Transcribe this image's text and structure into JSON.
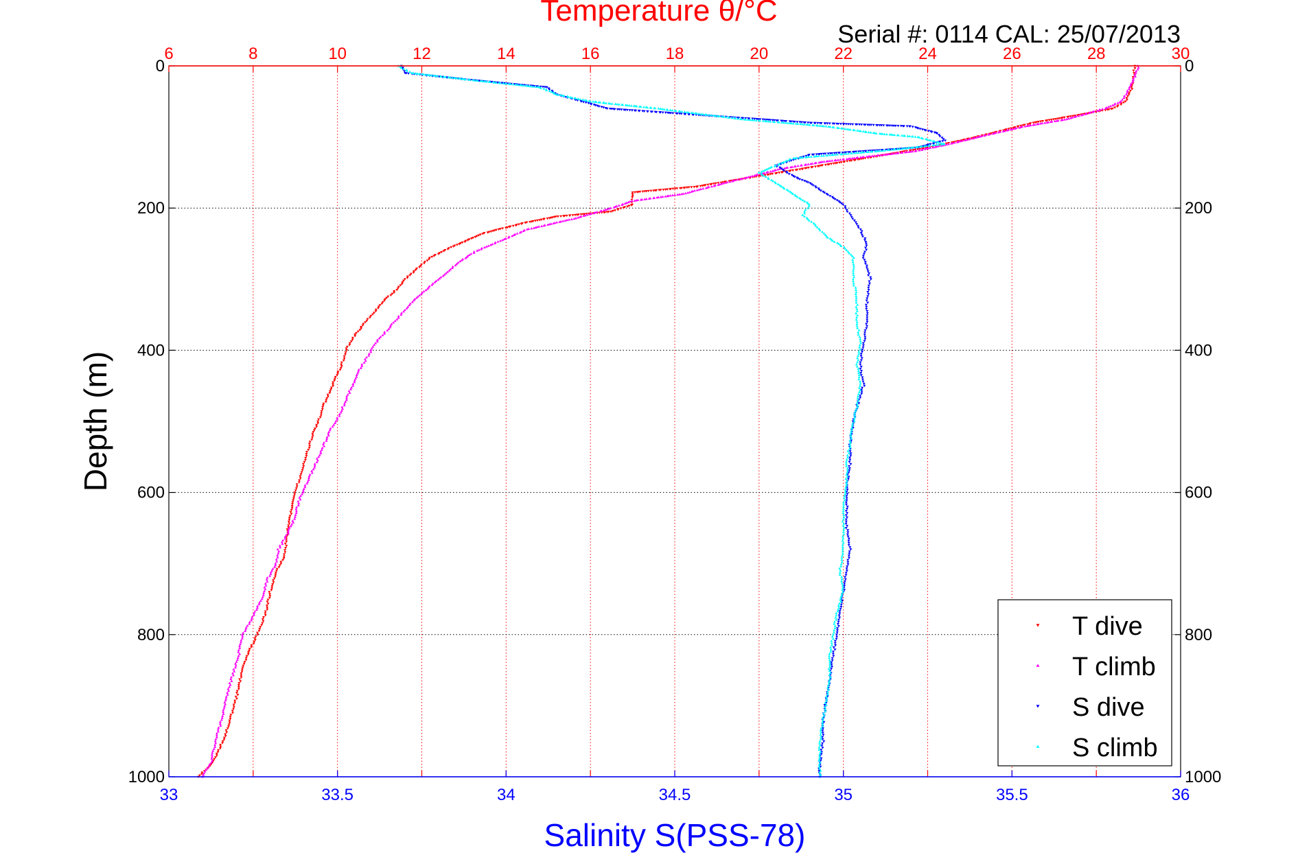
{
  "chart_data": {
    "type": "scatter",
    "title": "Temperature θ/°C",
    "subtitle": "Serial #: 0114  CAL: 25/07/2013",
    "xlabel_bottom": "Salinity S(PSS-78)",
    "xlabel_top": "",
    "ylabel": "Depth (m)",
    "xlim_salinity": [
      33,
      36
    ],
    "xlim_temperature": [
      6,
      30
    ],
    "ylim_depth": [
      0,
      1000
    ],
    "y_reversed": true,
    "grid": true,
    "legend_position": "bottom-right",
    "ticks": {
      "salinity": [
        "33",
        "33.5",
        "34",
        "34.5",
        "35",
        "35.5",
        "36"
      ],
      "temperature": [
        "6",
        "8",
        "10",
        "12",
        "14",
        "16",
        "18",
        "20",
        "22",
        "24",
        "26",
        "28",
        "30"
      ],
      "depth": [
        "0",
        "200",
        "400",
        "600",
        "800",
        "1000"
      ]
    },
    "colors": {
      "temperature_axis": "#ff0000",
      "salinity_axis": "#0000ff",
      "grid_temperature": "#ff0000",
      "grid_depth": "#000000"
    },
    "series": [
      {
        "name": "T dive",
        "axis": "temperature",
        "color": "#ff0000",
        "marker": "triangle-down",
        "points": [
          [
            28.9,
            0
          ],
          [
            28.9,
            10
          ],
          [
            28.85,
            30
          ],
          [
            28.7,
            50
          ],
          [
            28.4,
            60
          ],
          [
            27.5,
            70
          ],
          [
            26.5,
            80
          ],
          [
            25.5,
            95
          ],
          [
            24.8,
            105
          ],
          [
            24,
            115
          ],
          [
            23,
            125
          ],
          [
            22,
            135
          ],
          [
            21,
            145
          ],
          [
            20,
            155
          ],
          [
            18.5,
            170
          ],
          [
            17,
            178
          ],
          [
            17,
            185
          ],
          [
            17,
            195
          ],
          [
            16.5,
            205
          ],
          [
            15.2,
            212
          ],
          [
            14.5,
            220
          ],
          [
            13.5,
            235
          ],
          [
            12.7,
            255
          ],
          [
            12.2,
            270
          ],
          [
            11.9,
            285
          ],
          [
            11.6,
            300
          ],
          [
            11.4,
            315
          ],
          [
            11.1,
            330
          ],
          [
            10.9,
            345
          ],
          [
            10.6,
            365
          ],
          [
            10.4,
            380
          ],
          [
            10.2,
            400
          ],
          [
            10.1,
            420
          ],
          [
            9.95,
            440
          ],
          [
            9.8,
            460
          ],
          [
            9.65,
            480
          ],
          [
            9.55,
            500
          ],
          [
            9.4,
            520
          ],
          [
            9.3,
            540
          ],
          [
            9.2,
            560
          ],
          [
            9.1,
            580
          ],
          [
            9,
            600
          ],
          [
            8.9,
            630
          ],
          [
            8.8,
            660
          ],
          [
            8.75,
            690
          ],
          [
            8.55,
            710
          ],
          [
            8.4,
            740
          ],
          [
            8.3,
            770
          ],
          [
            8.1,
            800
          ],
          [
            7.85,
            830
          ],
          [
            7.7,
            860
          ],
          [
            7.6,
            890
          ],
          [
            7.5,
            910
          ],
          [
            7.35,
            940
          ],
          [
            7.2,
            960
          ],
          [
            7.05,
            980
          ],
          [
            6.7,
            1000
          ]
        ]
      },
      {
        "name": "T climb",
        "axis": "temperature",
        "color": "#ff00ff",
        "marker": "triangle-up",
        "points": [
          [
            29,
            0
          ],
          [
            28.95,
            10
          ],
          [
            28.8,
            30
          ],
          [
            28.6,
            50
          ],
          [
            28.2,
            60
          ],
          [
            27.3,
            75
          ],
          [
            26.3,
            85
          ],
          [
            25.2,
            100
          ],
          [
            24.5,
            110
          ],
          [
            23.7,
            120
          ],
          [
            22.5,
            128
          ],
          [
            21.5,
            135
          ],
          [
            20.5,
            145
          ],
          [
            19.5,
            160
          ],
          [
            18.2,
            180
          ],
          [
            17,
            190
          ],
          [
            16.5,
            200
          ],
          [
            15.6,
            215
          ],
          [
            14.5,
            230
          ],
          [
            13.9,
            245
          ],
          [
            13.3,
            260
          ],
          [
            12.9,
            275
          ],
          [
            12.6,
            290
          ],
          [
            12.2,
            310
          ],
          [
            11.8,
            330
          ],
          [
            11.5,
            350
          ],
          [
            11.2,
            370
          ],
          [
            10.9,
            390
          ],
          [
            10.7,
            410
          ],
          [
            10.5,
            430
          ],
          [
            10.35,
            450
          ],
          [
            10.2,
            470
          ],
          [
            10.05,
            490
          ],
          [
            9.85,
            510
          ],
          [
            9.7,
            530
          ],
          [
            9.55,
            550
          ],
          [
            9.4,
            570
          ],
          [
            9.25,
            590
          ],
          [
            9.1,
            610
          ],
          [
            8.95,
            640
          ],
          [
            8.8,
            660
          ],
          [
            8.6,
            680
          ],
          [
            8.55,
            700
          ],
          [
            8.35,
            720
          ],
          [
            8.2,
            750
          ],
          [
            7.95,
            780
          ],
          [
            7.75,
            800
          ],
          [
            7.65,
            830
          ],
          [
            7.5,
            860
          ],
          [
            7.35,
            890
          ],
          [
            7.25,
            920
          ],
          [
            7.1,
            950
          ],
          [
            7,
            980
          ],
          [
            6.8,
            1000
          ]
        ]
      },
      {
        "name": "S dive",
        "axis": "salinity",
        "color": "#0000ff",
        "marker": "triangle-down",
        "points": [
          [
            33.69,
            0
          ],
          [
            33.7,
            10
          ],
          [
            33.9,
            20
          ],
          [
            34.12,
            30
          ],
          [
            34.15,
            40
          ],
          [
            34.3,
            60
          ],
          [
            34.6,
            70
          ],
          [
            34.9,
            80
          ],
          [
            35.2,
            85
          ],
          [
            35.28,
            95
          ],
          [
            35.3,
            105
          ],
          [
            35.22,
            115
          ],
          [
            34.9,
            125
          ],
          [
            34.8,
            140
          ],
          [
            34.85,
            155
          ],
          [
            34.9,
            165
          ],
          [
            34.95,
            180
          ],
          [
            35,
            195
          ],
          [
            35.02,
            210
          ],
          [
            35.05,
            230
          ],
          [
            35.07,
            250
          ],
          [
            35.06,
            270
          ],
          [
            35.08,
            300
          ],
          [
            35.07,
            330
          ],
          [
            35.07,
            360
          ],
          [
            35.06,
            390
          ],
          [
            35.05,
            420
          ],
          [
            35.06,
            450
          ],
          [
            35.04,
            480
          ],
          [
            35.03,
            500
          ],
          [
            35.02,
            530
          ],
          [
            35.02,
            560
          ],
          [
            35.01,
            590
          ],
          [
            35.01,
            620
          ],
          [
            35.01,
            650
          ],
          [
            35.02,
            680
          ],
          [
            35.01,
            710
          ],
          [
            35,
            740
          ],
          [
            34.99,
            770
          ],
          [
            34.98,
            800
          ],
          [
            34.97,
            830
          ],
          [
            34.96,
            860
          ],
          [
            34.95,
            890
          ],
          [
            34.94,
            920
          ],
          [
            34.94,
            950
          ],
          [
            34.93,
            980
          ],
          [
            34.93,
            1000
          ]
        ]
      },
      {
        "name": "S climb",
        "axis": "salinity",
        "color": "#00ffff",
        "marker": "triangle-up",
        "points": [
          [
            33.68,
            0
          ],
          [
            33.72,
            10
          ],
          [
            33.9,
            20
          ],
          [
            34.1,
            30
          ],
          [
            34.15,
            40
          ],
          [
            34.25,
            50
          ],
          [
            34.45,
            60
          ],
          [
            34.7,
            75
          ],
          [
            34.95,
            85
          ],
          [
            35.1,
            95
          ],
          [
            35.22,
            100
          ],
          [
            35.3,
            110
          ],
          [
            35.1,
            120
          ],
          [
            34.85,
            130
          ],
          [
            34.75,
            150
          ],
          [
            34.8,
            165
          ],
          [
            34.85,
            180
          ],
          [
            34.9,
            195
          ],
          [
            34.88,
            210
          ],
          [
            34.92,
            225
          ],
          [
            34.95,
            240
          ],
          [
            35,
            255
          ],
          [
            35.03,
            270
          ],
          [
            35.03,
            300
          ],
          [
            35.04,
            330
          ],
          [
            35.04,
            360
          ],
          [
            35.05,
            390
          ],
          [
            35.04,
            420
          ],
          [
            35.05,
            450
          ],
          [
            35.04,
            480
          ],
          [
            35.03,
            500
          ],
          [
            35.02,
            530
          ],
          [
            35.01,
            560
          ],
          [
            35.01,
            590
          ],
          [
            35,
            620
          ],
          [
            35,
            650
          ],
          [
            35,
            680
          ],
          [
            34.99,
            710
          ],
          [
            35,
            740
          ],
          [
            34.98,
            770
          ],
          [
            34.97,
            800
          ],
          [
            34.96,
            830
          ],
          [
            34.96,
            860
          ],
          [
            34.95,
            890
          ],
          [
            34.94,
            920
          ],
          [
            34.93,
            950
          ],
          [
            34.93,
            980
          ],
          [
            34.93,
            1000
          ]
        ]
      }
    ]
  }
}
